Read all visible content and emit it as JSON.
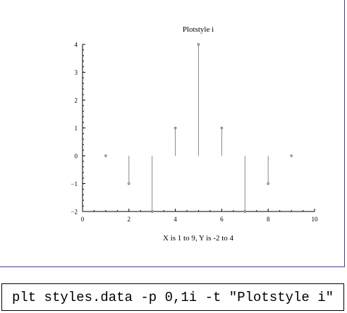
{
  "chart_data": {
    "type": "scatter",
    "style": "impulse",
    "title": "Plotstyle i",
    "xlabel": "X is 1 to 9,  Y is -2 to 4",
    "ylabel": "",
    "xlim": [
      0,
      10
    ],
    "ylim": [
      -2,
      4
    ],
    "xticks": [
      0,
      2,
      4,
      6,
      8,
      10
    ],
    "yticks": [
      -2,
      -1,
      0,
      1,
      2,
      3,
      4
    ],
    "baseline": 0,
    "grid": false,
    "x": [
      1,
      2,
      3,
      4,
      5,
      6,
      7,
      8,
      9
    ],
    "y": [
      0,
      -1,
      -2,
      1,
      4,
      1,
      -2,
      -1,
      0
    ]
  },
  "command": "plt styles.data -p 0,1i -t \"Plotstyle i\""
}
